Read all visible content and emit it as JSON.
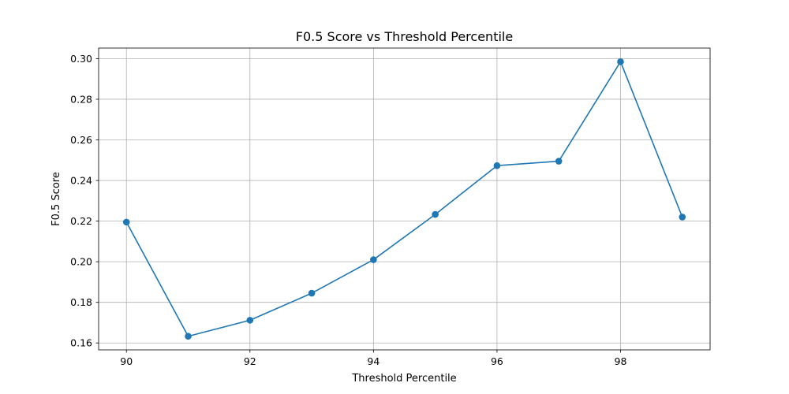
{
  "chart_data": {
    "type": "line",
    "title": "F0.5 Score vs Threshold Percentile",
    "xlabel": "Threshold Percentile",
    "ylabel": "F0.5 Score",
    "xlim": [
      89.55,
      99.45
    ],
    "ylim": [
      0.1566,
      0.3052
    ],
    "xticks": [
      90,
      92,
      94,
      96,
      98
    ],
    "yticks": [
      0.16,
      0.18,
      0.2,
      0.22,
      0.24,
      0.26,
      0.28,
      0.3
    ],
    "xtick_labels": [
      "90",
      "92",
      "94",
      "96",
      "98"
    ],
    "ytick_labels": [
      "0.16",
      "0.18",
      "0.20",
      "0.22",
      "0.24",
      "0.26",
      "0.28",
      "0.30"
    ],
    "grid": true,
    "legend": "none",
    "colors": {
      "line": "#1f77b4",
      "grid": "#b0b0b0",
      "axes": "#000000"
    },
    "series": [
      {
        "x": [
          90,
          91,
          92,
          93,
          94,
          95,
          96,
          97,
          98,
          99
        ],
        "y": [
          0.2195,
          0.1633,
          0.1712,
          0.1845,
          0.201,
          0.2233,
          0.2473,
          0.2495,
          0.2985,
          0.222
        ]
      }
    ]
  }
}
